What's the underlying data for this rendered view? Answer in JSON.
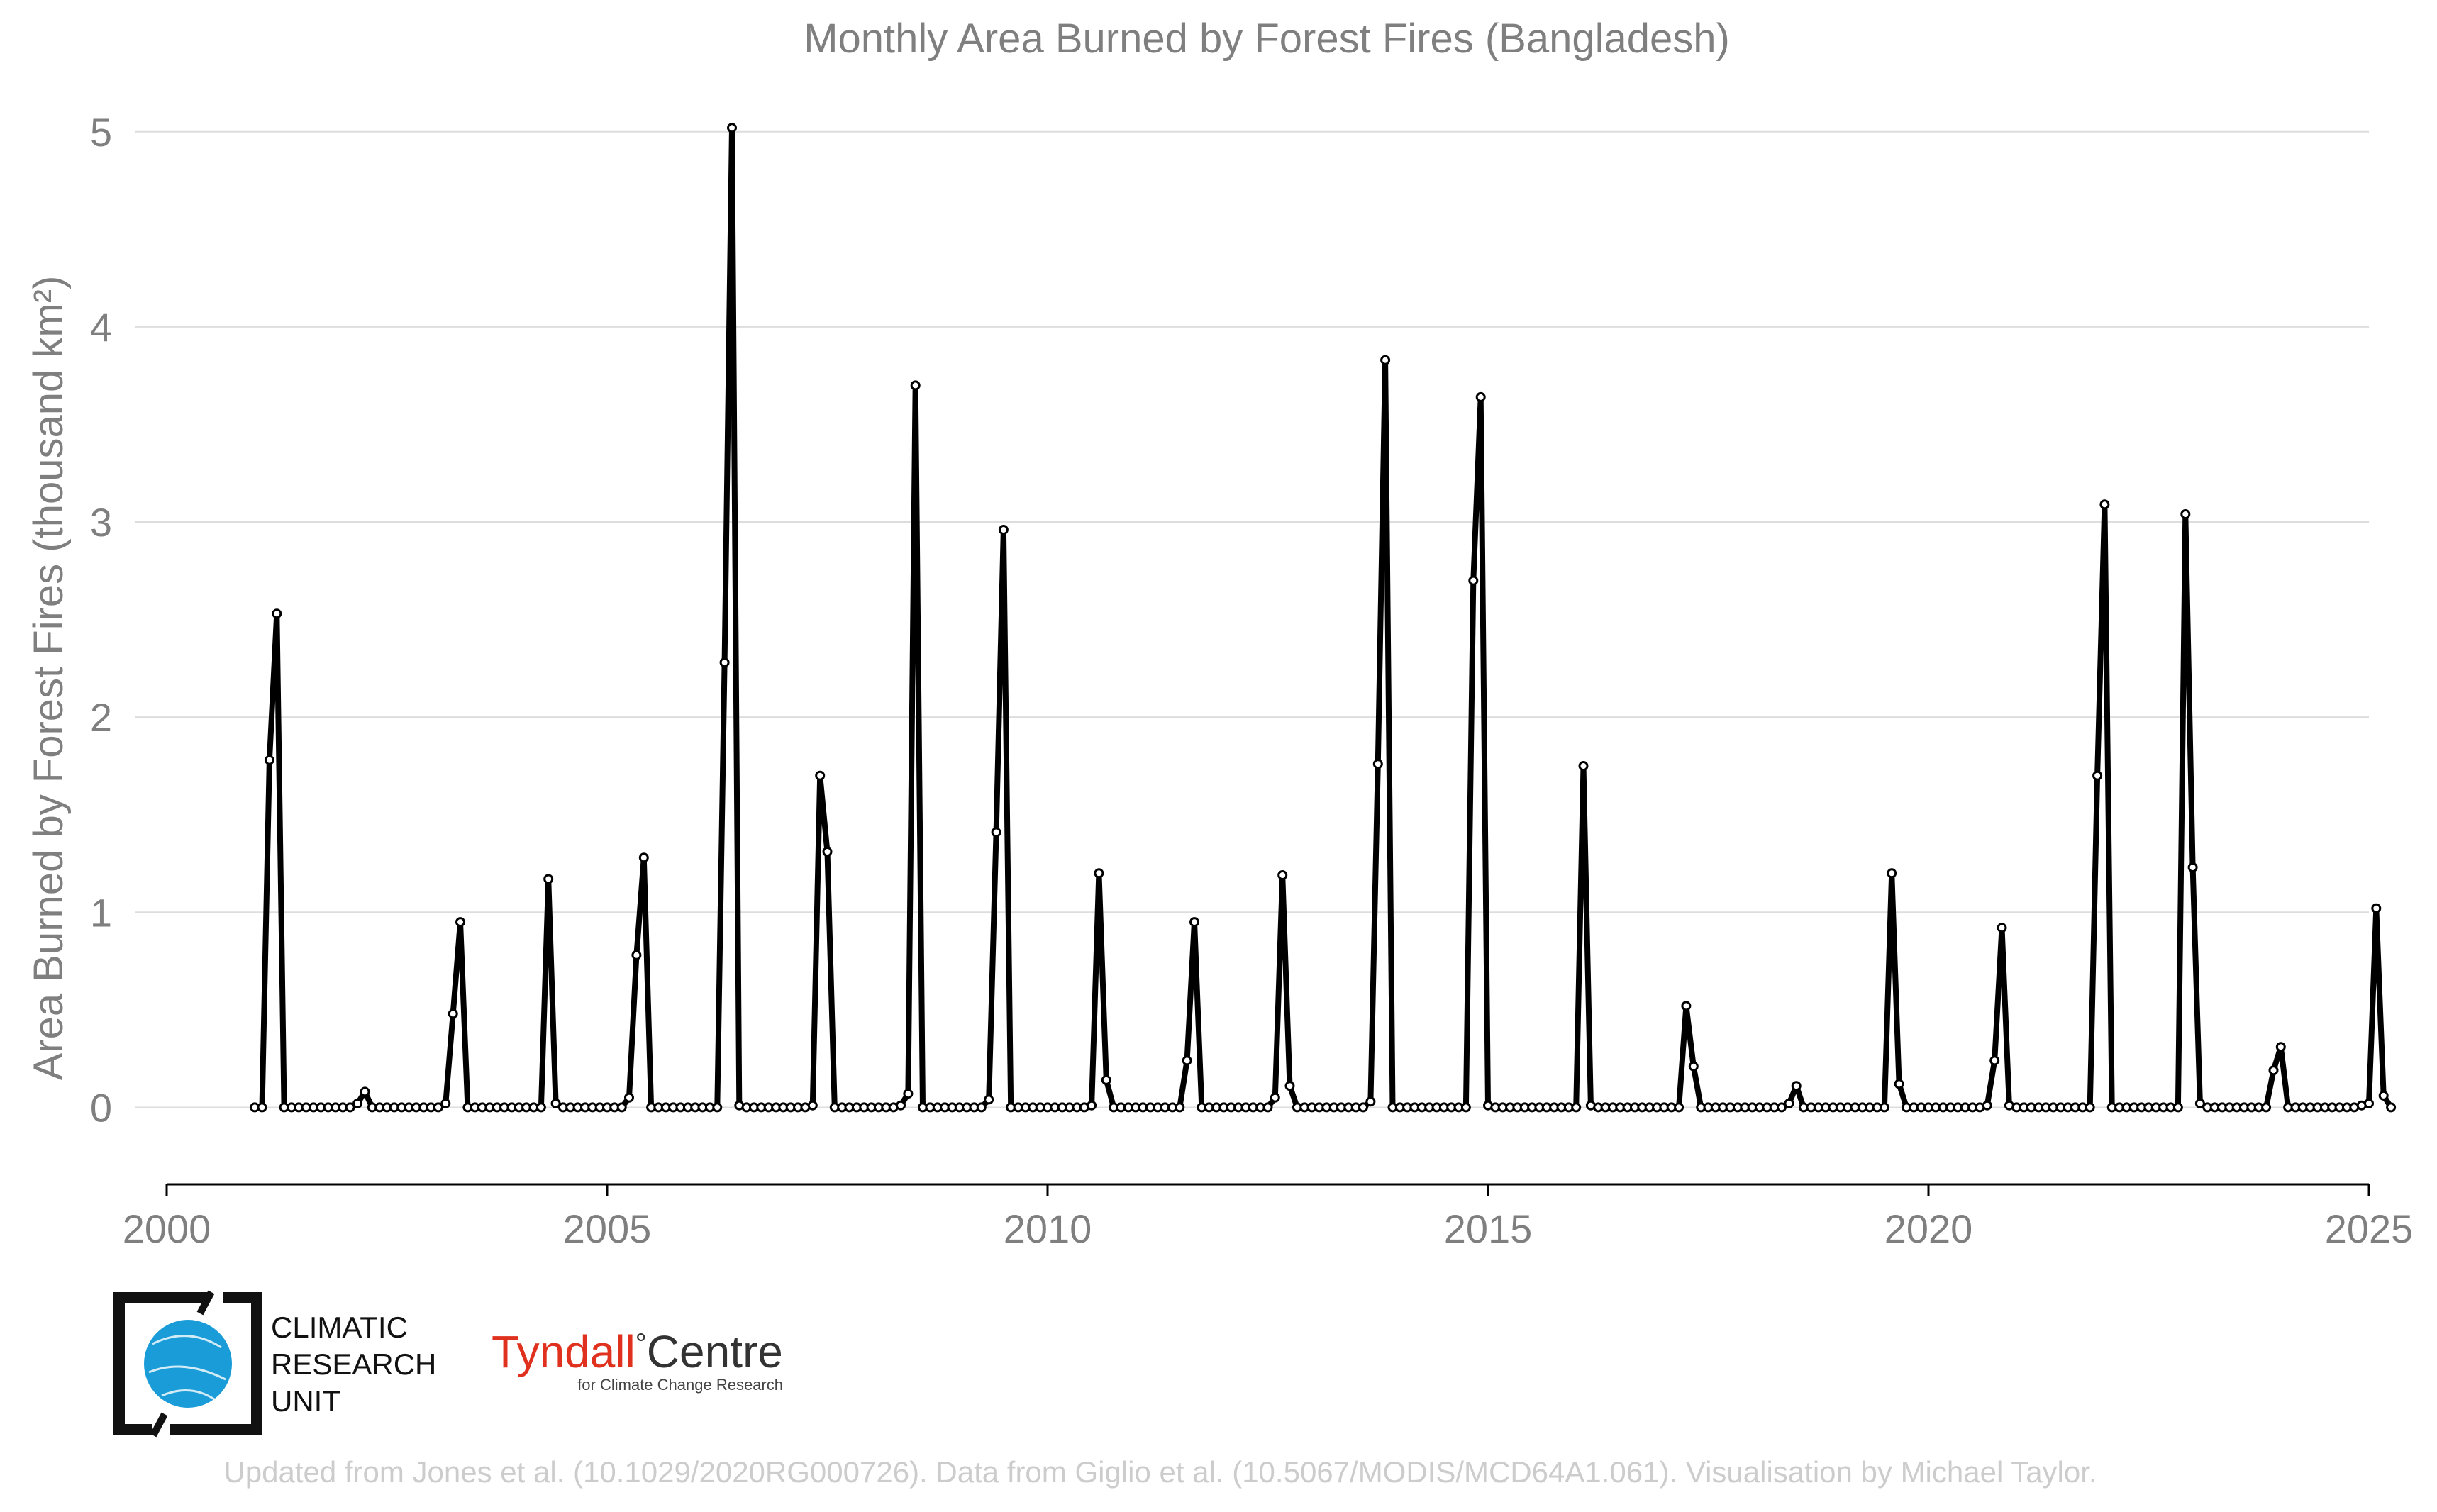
{
  "chart_data": {
    "type": "line",
    "title": "Monthly Area Burned by Forest Fires (Bangladesh)",
    "xlabel": "",
    "ylabel": "Area Burned by Forest Fires (thousand km²)",
    "xlim": [
      2000,
      2025
    ],
    "ylim": [
      -0.38,
      5.05
    ],
    "x_ticks": [
      2000,
      2005,
      2010,
      2015,
      2020,
      2025
    ],
    "x_tick_labels": [
      "2000",
      "2005",
      "2010",
      "2015",
      "2020",
      "2025"
    ],
    "y_ticks": [
      0,
      1,
      2,
      3,
      4,
      5
    ],
    "y_tick_labels": [
      "0",
      "1",
      "2",
      "3",
      "4",
      "5"
    ],
    "grid": "horizontal",
    "legend": "none",
    "start_month": "2001-01",
    "x_step": "monthly",
    "series": [
      {
        "values": [
          0,
          0,
          1.78,
          2.53,
          0,
          0,
          0,
          0,
          0,
          0,
          0,
          0,
          0,
          0,
          0.02,
          0.08,
          0,
          0,
          0,
          0,
          0,
          0,
          0,
          0,
          0,
          0,
          0.02,
          0.48,
          0.95,
          0,
          0,
          0,
          0,
          0,
          0,
          0,
          0,
          0,
          0,
          0,
          1.17,
          0.02,
          0,
          0,
          0,
          0,
          0,
          0,
          0,
          0,
          0,
          0.05,
          0.78,
          1.28,
          0,
          0,
          0,
          0,
          0,
          0,
          0,
          0,
          0,
          0,
          2.28,
          5.02,
          0.01,
          0,
          0,
          0,
          0,
          0,
          0,
          0,
          0,
          0,
          0.01,
          1.7,
          1.31,
          0,
          0,
          0,
          0,
          0,
          0,
          0,
          0,
          0,
          0.01,
          0.07,
          3.7,
          0,
          0,
          0,
          0,
          0,
          0,
          0,
          0,
          0,
          0.04,
          1.41,
          2.96,
          0,
          0,
          0,
          0,
          0,
          0,
          0,
          0,
          0,
          0,
          0,
          0.01,
          1.2,
          0.14,
          0,
          0,
          0,
          0,
          0,
          0,
          0,
          0,
          0,
          0,
          0.24,
          0.95,
          0,
          0,
          0,
          0,
          0,
          0,
          0,
          0,
          0,
          0,
          0.05,
          1.19,
          0.11,
          0,
          0,
          0,
          0,
          0,
          0,
          0,
          0,
          0,
          0,
          0.03,
          1.76,
          3.83,
          0,
          0,
          0,
          0,
          0,
          0,
          0,
          0,
          0,
          0,
          0,
          2.7,
          3.64,
          0.01,
          0,
          0,
          0,
          0,
          0,
          0,
          0,
          0,
          0,
          0,
          0,
          0,
          1.75,
          0.01,
          0,
          0,
          0,
          0,
          0,
          0,
          0,
          0,
          0,
          0,
          0,
          0,
          0.52,
          0.21,
          0,
          0,
          0,
          0,
          0,
          0,
          0,
          0,
          0,
          0,
          0,
          0,
          0.02,
          0.11,
          0,
          0,
          0,
          0,
          0,
          0,
          0,
          0,
          0,
          0,
          0,
          0,
          1.2,
          0.12,
          0,
          0,
          0,
          0,
          0,
          0,
          0,
          0,
          0,
          0,
          0,
          0.01,
          0.24,
          0.92,
          0.01,
          0,
          0,
          0,
          0,
          0,
          0,
          0,
          0,
          0,
          0,
          0,
          1.7,
          3.09,
          0,
          0,
          0,
          0,
          0,
          0,
          0,
          0,
          0,
          0,
          3.04,
          1.23,
          0.02,
          0,
          0,
          0,
          0,
          0,
          0,
          0,
          0,
          0,
          0.19,
          0.31,
          0,
          0,
          0,
          0,
          0,
          0,
          0,
          0,
          0,
          0,
          0.01,
          0.02,
          1.02,
          0.06,
          0
        ]
      }
    ]
  },
  "footer": {
    "credit": "Updated from Jones et al. (10.1029/2020RG000726). Data from Giglio et al. (10.5067/MODIS/MCD64A1.061). Visualisation by Michael Taylor."
  },
  "logos": {
    "cru": {
      "lines": [
        "CLIMATIC",
        "RESEARCH",
        "UNIT"
      ],
      "ring_color": "#111111",
      "globe_color": "#1a9cd8"
    },
    "tyndall": {
      "name_part1": "Tyndall",
      "degree": "°",
      "name_part2": "Centre",
      "tagline": "for Climate Change Research",
      "red": "#e0301e",
      "dark": "#333333"
    }
  },
  "colors": {
    "line": "#000000",
    "marker_fill": "#ffffff",
    "grid": "#dddddd",
    "text": "#7f7f7f",
    "credit_text": "#cccccc"
  }
}
